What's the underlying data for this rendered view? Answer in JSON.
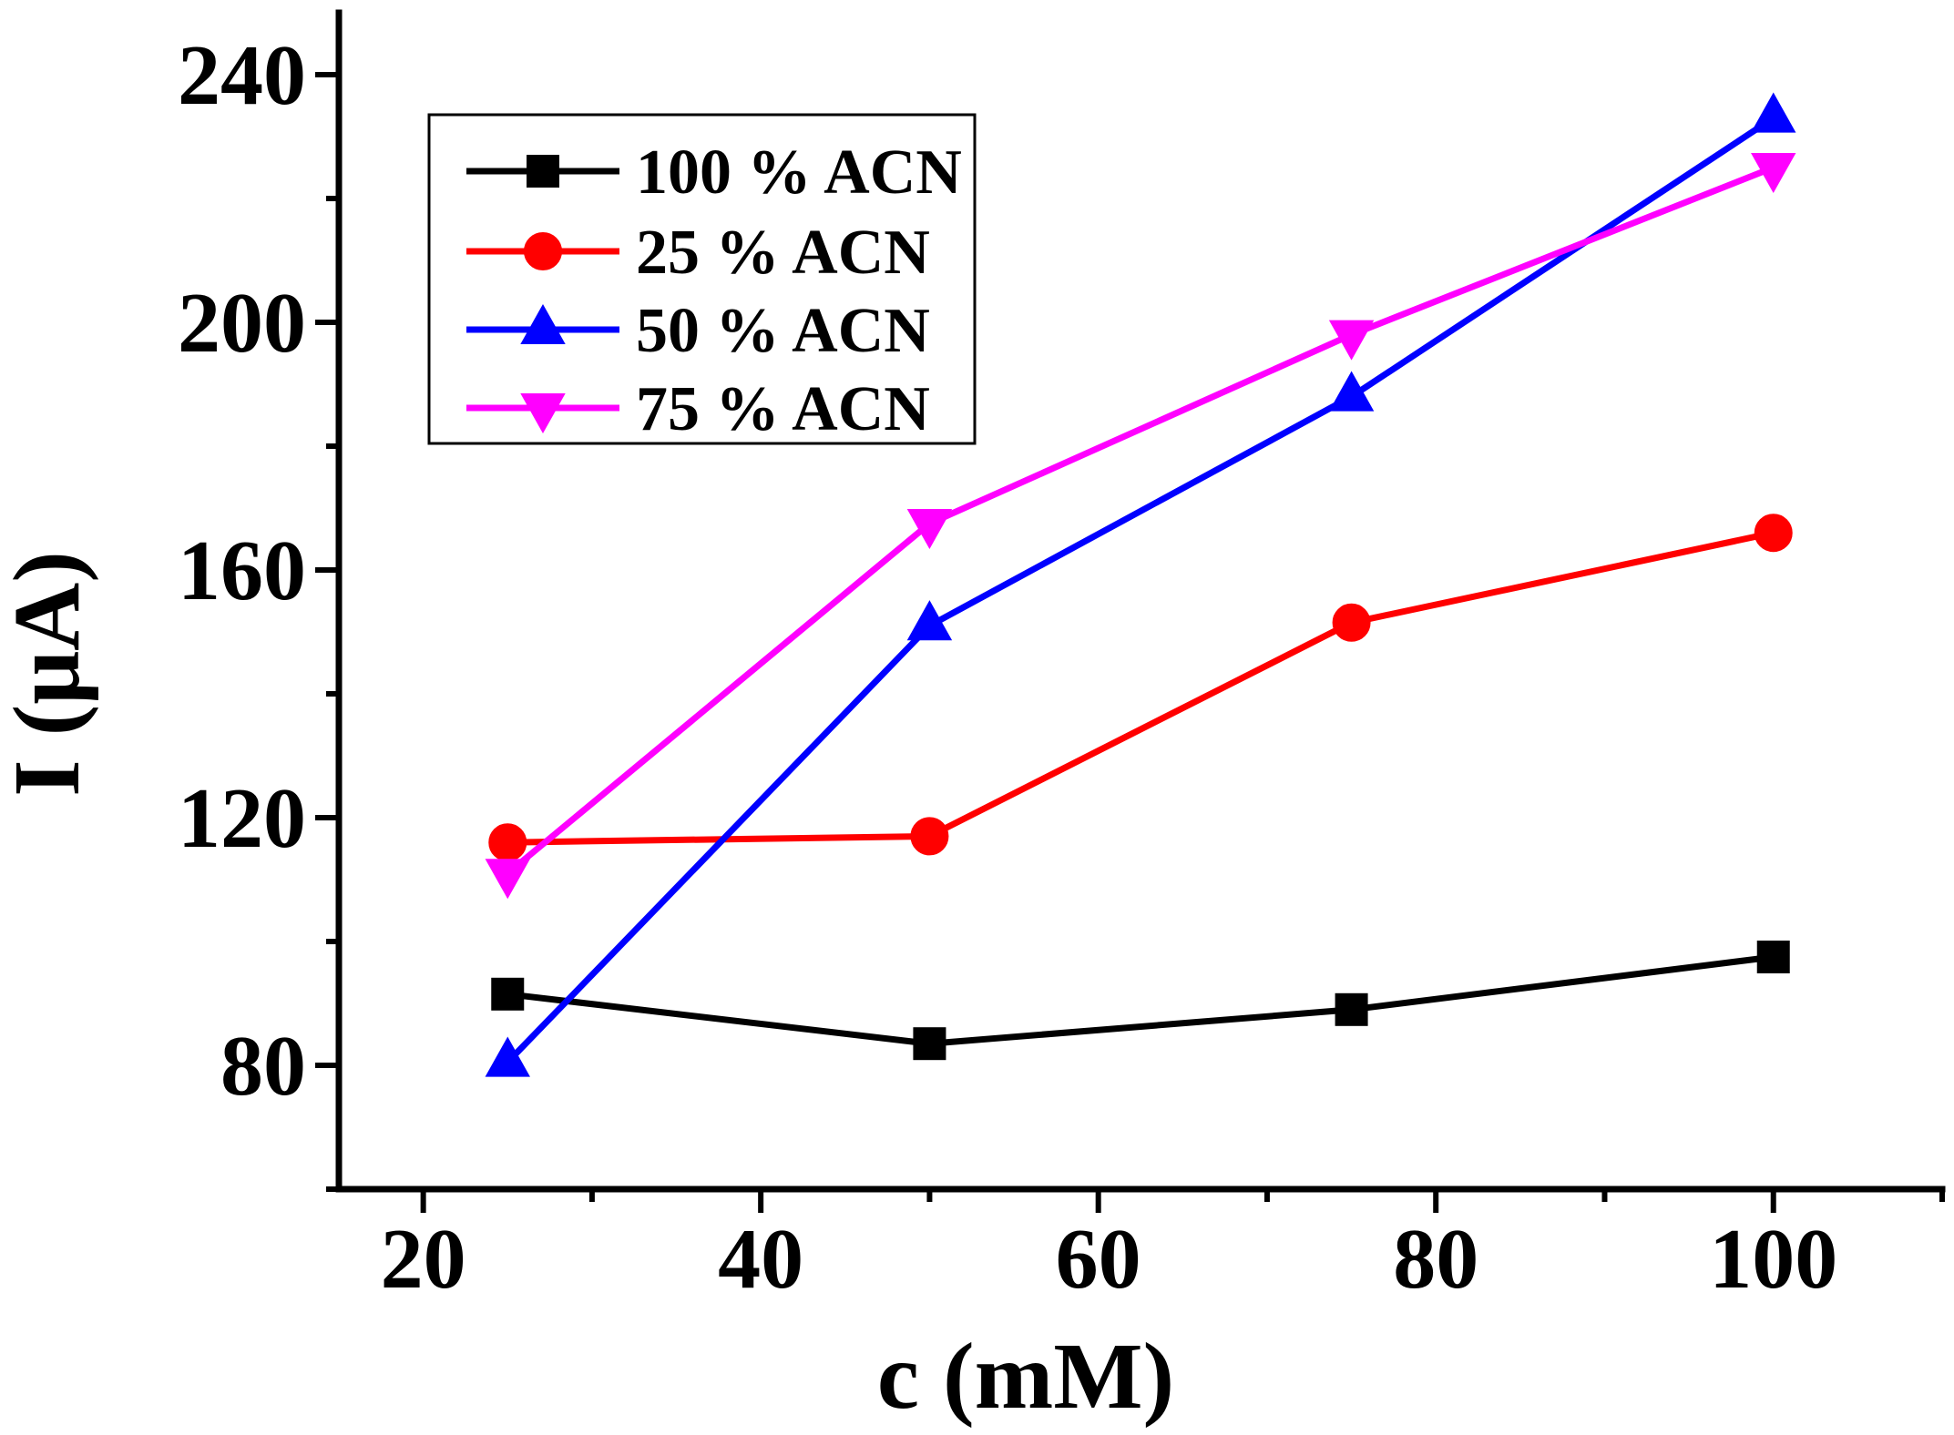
{
  "chart_data": {
    "type": "line",
    "title": "",
    "xlabel": "c (mM)",
    "ylabel": "I (μA)",
    "xlim": [
      15,
      110
    ],
    "ylim": [
      60,
      250
    ],
    "xticks": [
      20,
      40,
      60,
      80,
      100
    ],
    "xminor_ticks": [
      30,
      50,
      70,
      90,
      110
    ],
    "yticks": [
      80,
      120,
      160,
      200,
      240
    ],
    "yminor_ticks": [
      60,
      100,
      140,
      180,
      220
    ],
    "grid": false,
    "legend_position": "top-left",
    "x": [
      25,
      50,
      75,
      100
    ],
    "series": [
      {
        "name": "100 % ACN",
        "color": "#000000",
        "marker": "square",
        "values": [
          91.5,
          83.5,
          89,
          97.5
        ]
      },
      {
        "name": "25 % ACN",
        "color": "#ff0000",
        "marker": "circle",
        "values": [
          116,
          117,
          151.5,
          166
        ]
      },
      {
        "name": "50 % ACN",
        "color": "#0000ff",
        "marker": "triangle-up",
        "values": [
          80.5,
          151,
          188,
          233
        ]
      },
      {
        "name": "75 % ACN",
        "color": "#ff00ff",
        "marker": "triangle-down",
        "values": [
          111,
          167.5,
          198,
          225
        ]
      }
    ]
  }
}
